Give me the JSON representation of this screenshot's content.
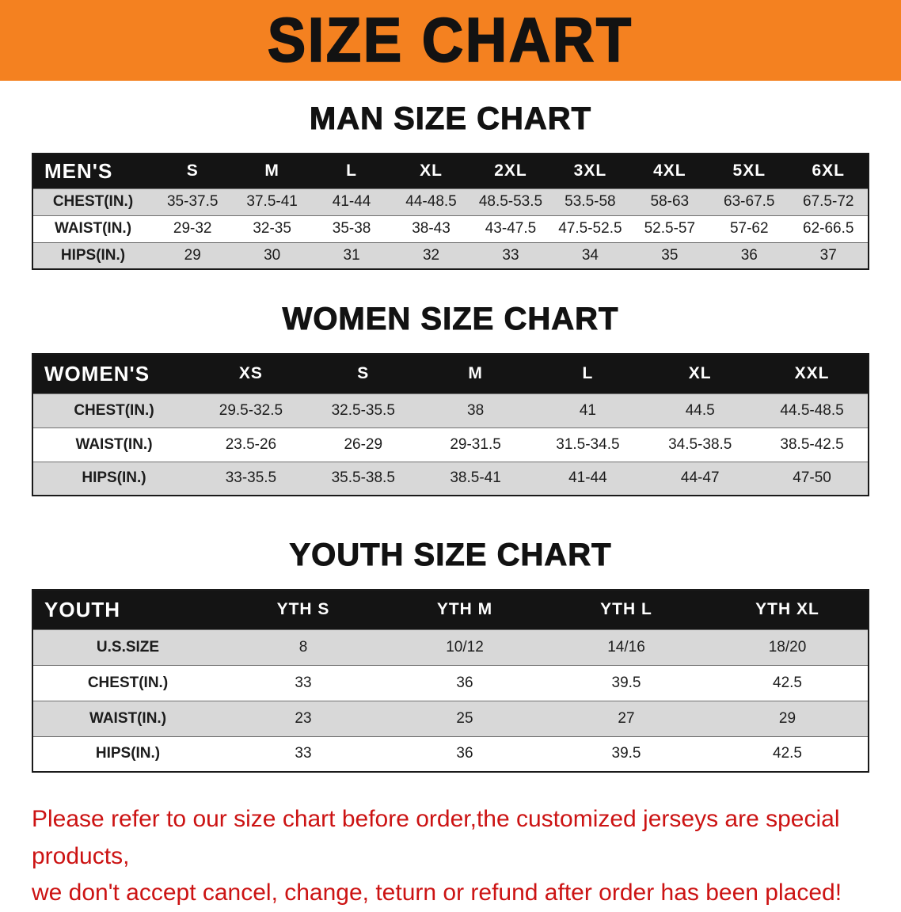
{
  "banner": {
    "title": "SIZE CHART"
  },
  "colors": {
    "banner_bg": "#f48120",
    "table_header_bg": "#141414",
    "row_alt_bg": "#d8d8d8",
    "footer_text": "#cc1313"
  },
  "sections": [
    {
      "heading": "MAN SIZE CHART",
      "table": {
        "header": [
          "MEN'S",
          "S",
          "M",
          "L",
          "XL",
          "2XL",
          "3XL",
          "4XL",
          "5XL",
          "6XL"
        ],
        "rows": [
          [
            "CHEST(IN.)",
            "35-37.5",
            "37.5-41",
            "41-44",
            "44-48.5",
            "48.5-53.5",
            "53.5-58",
            "58-63",
            "63-67.5",
            "67.5-72"
          ],
          [
            "WAIST(IN.)",
            "29-32",
            "32-35",
            "35-38",
            "38-43",
            "43-47.5",
            "47.5-52.5",
            "52.5-57",
            "57-62",
            "62-66.5"
          ],
          [
            "HIPS(IN.)",
            "29",
            "30",
            "31",
            "32",
            "33",
            "34",
            "35",
            "36",
            "37"
          ]
        ]
      }
    },
    {
      "heading": "WOMEN SIZE CHART",
      "table": {
        "header": [
          "WOMEN'S",
          "XS",
          "S",
          "M",
          "L",
          "XL",
          "XXL"
        ],
        "rows": [
          [
            "CHEST(IN.)",
            "29.5-32.5",
            "32.5-35.5",
            "38",
            "41",
            "44.5",
            "44.5-48.5"
          ],
          [
            "WAIST(IN.)",
            "23.5-26",
            "26-29",
            "29-31.5",
            "31.5-34.5",
            "34.5-38.5",
            "38.5-42.5"
          ],
          [
            "HIPS(IN.)",
            "33-35.5",
            "35.5-38.5",
            "38.5-41",
            "41-44",
            "44-47",
            "47-50"
          ]
        ]
      }
    },
    {
      "heading": "YOUTH SIZE CHART",
      "table": {
        "header": [
          "YOUTH",
          "YTH S",
          "YTH M",
          "YTH L",
          "YTH XL"
        ],
        "rows": [
          [
            "U.S.SIZE",
            "8",
            "10/12",
            "14/16",
            "18/20"
          ],
          [
            "CHEST(IN.)",
            "33",
            "36",
            "39.5",
            "42.5"
          ],
          [
            "WAIST(IN.)",
            "23",
            "25",
            "27",
            "29"
          ],
          [
            "HIPS(IN.)",
            "33",
            "36",
            "39.5",
            "42.5"
          ]
        ]
      }
    }
  ],
  "footer": {
    "line1": "Please refer to our size chart before order,the customized jerseys are special products,",
    "line2": "we don't accept cancel, change, teturn or refund after order has been placed!"
  }
}
